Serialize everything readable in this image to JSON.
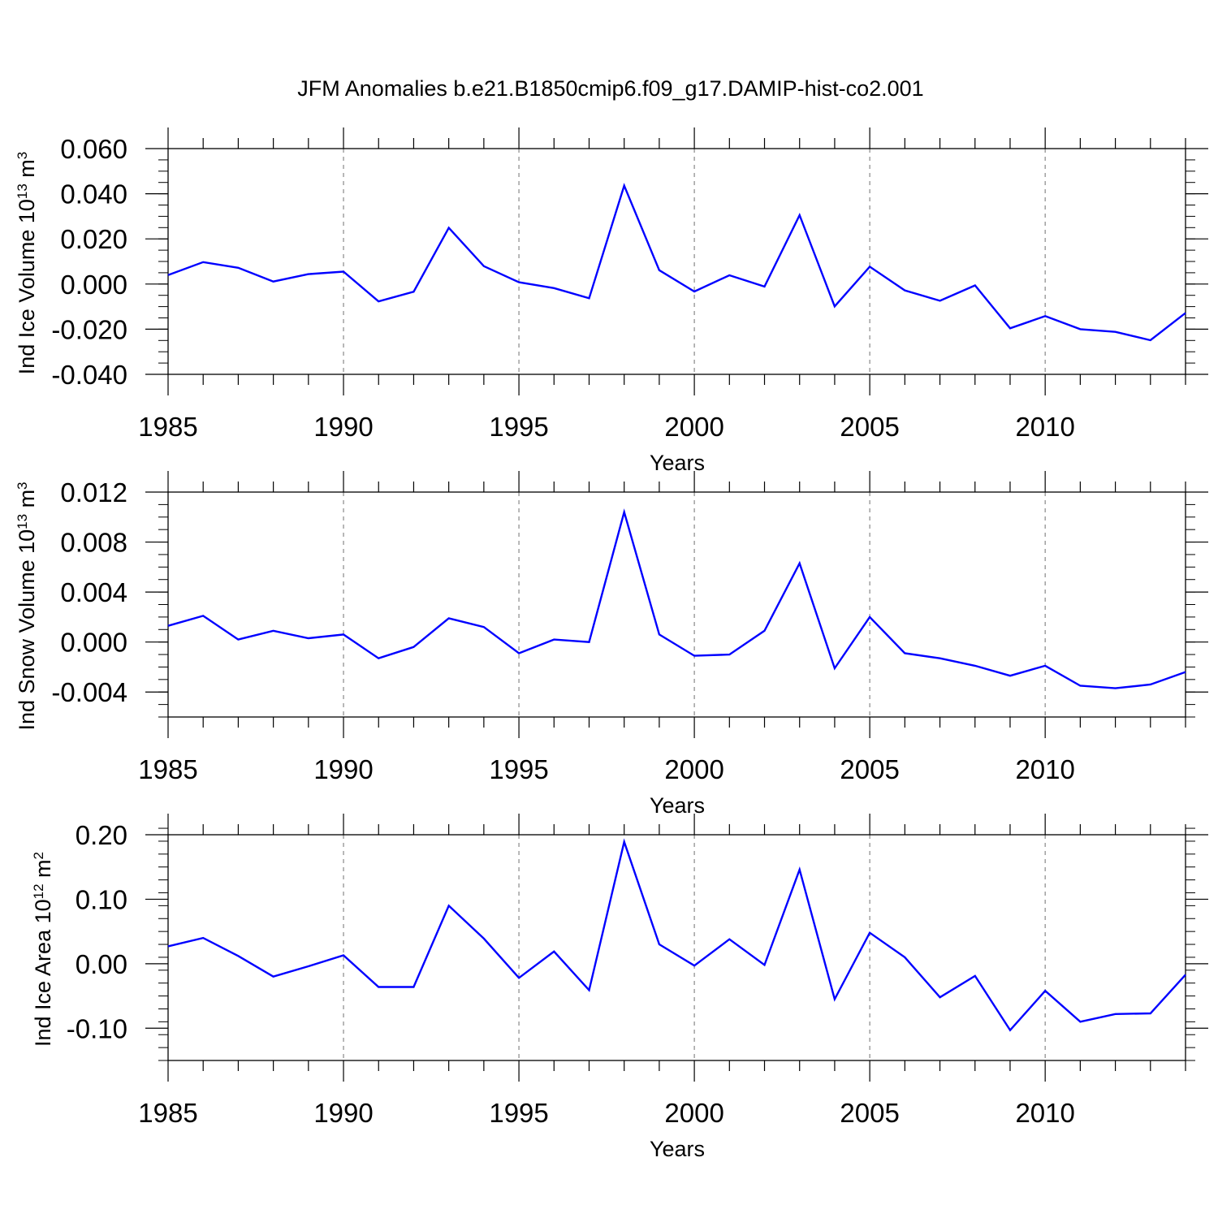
{
  "title": "JFM Anomalies b.e21.B1850cmip6.f09_g17.DAMIP-hist-co2.001",
  "colors": {
    "series": "#0000ff",
    "axes": "#000000",
    "grid": "#888888"
  },
  "chart_data": [
    {
      "type": "line",
      "ylabel": {
        "main": "Ind Ice Volume 10",
        "exp": "13",
        "unit": " m",
        "unit_exp": "3"
      },
      "xlabel": "Years",
      "xlim": [
        1985,
        2014
      ],
      "ylim": [
        -0.04,
        0.06
      ],
      "y_ticks": [
        -0.04,
        -0.02,
        0.0,
        0.02,
        0.04,
        0.06
      ],
      "y_tick_labels": [
        "-0.040",
        "-0.020",
        "0.000",
        "0.020",
        "0.040",
        "0.060"
      ],
      "y_minor_step": 0.005,
      "x_ticks": [
        1985,
        1990,
        1995,
        2000,
        2005,
        2010
      ],
      "x_tick_labels": [
        "1985",
        "1990",
        "1995",
        "2000",
        "2005",
        "2010"
      ],
      "grid": "dashed vertical at major x ticks",
      "series": [
        {
          "x": [
            1985,
            1986,
            1987,
            1988,
            1989,
            1990,
            1991,
            1992,
            1993,
            1994,
            1995,
            1996,
            1997,
            1998,
            1999,
            2000,
            2001,
            2002,
            2003,
            2004,
            2005,
            2006,
            2007,
            2008,
            2009,
            2010,
            2011,
            2012,
            2013,
            2014
          ],
          "values": [
            0.004,
            0.0097,
            0.0072,
            0.0011,
            0.0044,
            0.0055,
            -0.0077,
            -0.0034,
            0.0249,
            0.0079,
            0.0008,
            -0.0018,
            -0.0063,
            0.0436,
            0.0061,
            -0.0033,
            0.0039,
            -0.0011,
            0.0305,
            -0.0099,
            0.0077,
            -0.0028,
            -0.0074,
            -0.0006,
            -0.0196,
            -0.0142,
            -0.02,
            -0.0212,
            -0.0249,
            -0.0128
          ]
        }
      ]
    },
    {
      "type": "line",
      "ylabel": {
        "main": "Ind Snow Volume 10",
        "exp": "13",
        "unit": " m",
        "unit_exp": "3"
      },
      "xlabel": "Years",
      "xlim": [
        1985,
        2014
      ],
      "ylim": [
        -0.006,
        0.012
      ],
      "y_ticks": [
        -0.004,
        0.0,
        0.004,
        0.008,
        0.012
      ],
      "y_tick_labels": [
        "-0.004",
        "0.000",
        "0.004",
        "0.008",
        "0.012"
      ],
      "y_minor_step": 0.001,
      "x_ticks": [
        1985,
        1990,
        1995,
        2000,
        2005,
        2010
      ],
      "x_tick_labels": [
        "1985",
        "1990",
        "1995",
        "2000",
        "2005",
        "2010"
      ],
      "grid": "dashed vertical at major x ticks",
      "series": [
        {
          "x": [
            1985,
            1986,
            1987,
            1988,
            1989,
            1990,
            1991,
            1992,
            1993,
            1994,
            1995,
            1996,
            1997,
            1998,
            1999,
            2000,
            2001,
            2002,
            2003,
            2004,
            2005,
            2006,
            2007,
            2008,
            2009,
            2010,
            2011,
            2012,
            2013,
            2014
          ],
          "values": [
            0.0013,
            0.0021,
            0.0002,
            0.0009,
            0.0003,
            0.0006,
            -0.0013,
            -0.0004,
            0.0019,
            0.0012,
            -0.0009,
            0.0002,
            0.0,
            0.0104,
            0.0006,
            -0.0011,
            -0.001,
            0.0009,
            0.0063,
            -0.0021,
            0.002,
            -0.0009,
            -0.0013,
            -0.0019,
            -0.0027,
            -0.0019,
            -0.0035,
            -0.0037,
            -0.0034,
            -0.0024
          ]
        }
      ]
    },
    {
      "type": "line",
      "ylabel": {
        "main": "Ind Ice Area 10",
        "exp": "12",
        "unit": " m",
        "unit_exp": "2"
      },
      "xlabel": "Years",
      "xlim": [
        1985,
        2014
      ],
      "ylim": [
        -0.15,
        0.2
      ],
      "y_ticks": [
        -0.1,
        0.0,
        0.1,
        0.2
      ],
      "y_tick_labels": [
        "-0.10",
        "0.00",
        "0.10",
        "0.20"
      ],
      "y_minor_step": 0.02,
      "x_ticks": [
        1985,
        1990,
        1995,
        2000,
        2005,
        2010
      ],
      "x_tick_labels": [
        "1985",
        "1990",
        "1995",
        "2000",
        "2005",
        "2010"
      ],
      "grid": "dashed vertical at major x ticks",
      "series": [
        {
          "x": [
            1985,
            1986,
            1987,
            1988,
            1989,
            1990,
            1991,
            1992,
            1993,
            1994,
            1995,
            1996,
            1997,
            1998,
            1999,
            2000,
            2001,
            2002,
            2003,
            2004,
            2005,
            2006,
            2007,
            2008,
            2009,
            2010,
            2011,
            2012,
            2013,
            2014
          ],
          "values": [
            0.027,
            0.04,
            0.012,
            -0.02,
            -0.004,
            0.013,
            -0.036,
            -0.036,
            0.09,
            0.039,
            -0.022,
            0.019,
            -0.041,
            0.189,
            0.03,
            -0.003,
            0.038,
            -0.002,
            0.146,
            -0.055,
            0.048,
            0.01,
            -0.052,
            -0.019,
            -0.103,
            -0.042,
            -0.09,
            -0.078,
            -0.077,
            -0.017
          ]
        }
      ]
    }
  ]
}
